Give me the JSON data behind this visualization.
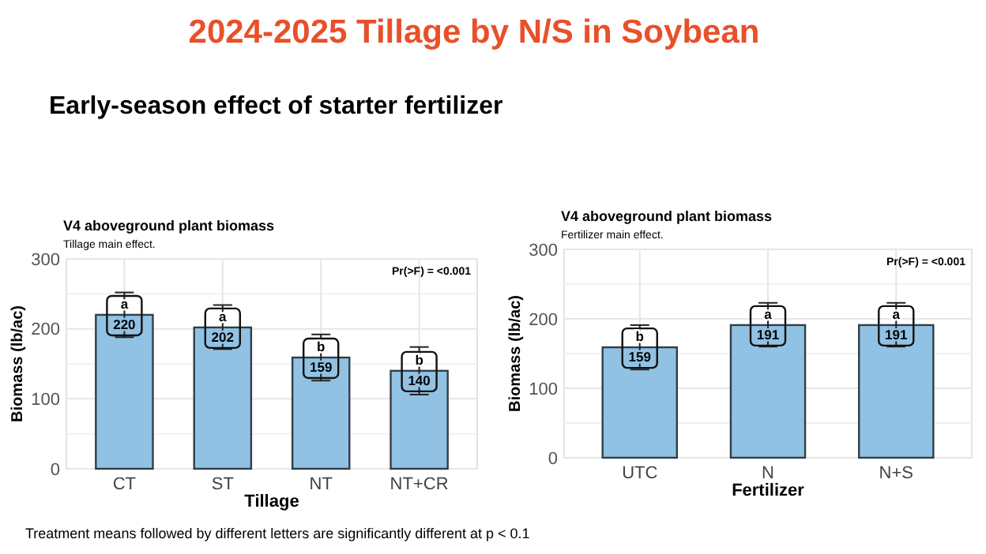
{
  "chart_data": [
    {
      "type": "bar",
      "title": "V4 aboveground plant biomass",
      "subtitle": "Tillage main effect.",
      "xlabel": "Tillage",
      "ylabel": "Biomass (lb/ac)",
      "categories": [
        "CT",
        "ST",
        "NT",
        "NT+CR"
      ],
      "values": [
        220,
        202,
        159,
        140
      ],
      "color": "#92c2e3",
      "errors": [
        [
          188,
          252
        ],
        [
          171,
          234
        ],
        [
          126,
          192
        ],
        [
          106,
          174
        ]
      ],
      "ylim": [
        0,
        300
      ],
      "yticks": [
        0,
        100,
        200,
        300
      ],
      "grid": true,
      "data_labels": true,
      "annotations": [
        {
          "text": "a",
          "x": "CT",
          "y": 220
        },
        {
          "text": "a",
          "x": "ST",
          "y": 202
        },
        {
          "text": "b",
          "x": "NT",
          "y": 159
        },
        {
          "text": "b",
          "x": "NT+CR",
          "y": 140
        },
        "Pr(>F) = <0.001",
        "2024-2025 Tillage by N/S in Soybean",
        "Early-season effect of starter fertilizer",
        "Treatment means followed by different letters are significantly different at p < 0.1"
      ]
    },
    {
      "type": "bar",
      "title": "V4 aboveground plant biomass",
      "subtitle": "Fertilizer main effect.",
      "xlabel": "Fertilizer",
      "ylabel": "Biomass (lb/ac)",
      "categories": [
        "UTC",
        "N",
        "N+S"
      ],
      "values": [
        159,
        191,
        191
      ],
      "color": "#92c2e3",
      "errors": [
        [
          127,
          191
        ],
        [
          160,
          223
        ],
        [
          160,
          223
        ]
      ],
      "ylim": [
        0,
        300
      ],
      "yticks": [
        0,
        100,
        200,
        300
      ],
      "grid": true,
      "data_labels": true,
      "annotations": [
        {
          "text": "b",
          "x": "UTC",
          "y": 159
        },
        {
          "text": "a",
          "x": "N",
          "y": 191
        },
        {
          "text": "a",
          "x": "N+S",
          "y": 191
        },
        "Pr(>F) = <0.001"
      ]
    }
  ]
}
